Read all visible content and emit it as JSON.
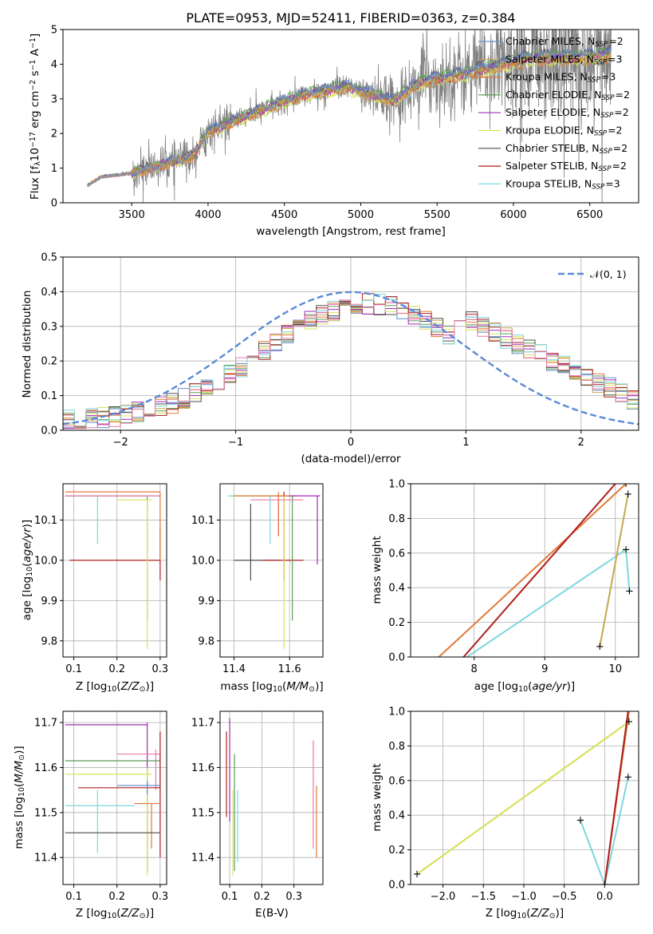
{
  "figure": {
    "title": "PLATE=0953, MJD=52411, FIBERID=0363, z=0.384"
  },
  "colors": {
    "data": "#808080",
    "Chabrier MILES": "#6a8fd0",
    "Salpeter MILES": "#c7a95a",
    "Kroupa MILES": "#e07b39",
    "Chabrier ELODIE": "#5e9c57",
    "Salpeter ELODIE": "#a02cb5",
    "Kroupa ELODIE": "#d9e35c",
    "Chabrier STELIB": "#4d4d4d",
    "Salpeter STELIB": "#b01e1e",
    "Kroupa STELIB": "#7fd6dd",
    "Kroupa ELODIE pink": "#e878a8",
    "normal": "#5b8ad6"
  },
  "chart_data": [
    {
      "id": "spectrum",
      "type": "line",
      "title": "PLATE=0953, MJD=52411, FIBERID=0363, z=0.384",
      "xlabel": "wavelength [Angstrom, rest frame]",
      "ylabel": "Flux [f",
      "ylabel_sub": "λ",
      "ylabel_rest": "10",
      "ylabel_exp": "−17",
      "ylabel_tail": " erg cm",
      "ylabel_exp2": "−2",
      "ylabel_tail2": " s",
      "ylabel_exp3": "−1",
      "ylabel_tail3": " A",
      "ylabel_exp4": "−1",
      "ylabel_end": "]",
      "xlim": [
        3050,
        6820
      ],
      "ylim": [
        0,
        5
      ],
      "xticks": [
        3500,
        4000,
        4500,
        5000,
        5500,
        6000,
        6500
      ],
      "yticks": [
        0,
        1,
        2,
        3,
        4,
        5
      ],
      "data_range": [
        3210,
        6640
      ],
      "continuum_anchors": [
        [
          3210,
          0.5
        ],
        [
          3300,
          0.75
        ],
        [
          3500,
          0.85
        ],
        [
          3700,
          1.1
        ],
        [
          3900,
          1.35
        ],
        [
          4000,
          2.05
        ],
        [
          4300,
          2.6
        ],
        [
          4600,
          3.1
        ],
        [
          4900,
          3.35
        ],
        [
          5100,
          3.1
        ],
        [
          5200,
          2.95
        ],
        [
          5400,
          3.5
        ],
        [
          5700,
          3.75
        ],
        [
          5900,
          3.95
        ],
        [
          6100,
          4.2
        ],
        [
          6400,
          4.2
        ],
        [
          6640,
          4.3
        ]
      ],
      "legend": [
        {
          "name": "Chabrier MILES",
          "sub": "SSP",
          "n": "2"
        },
        {
          "name": "Salpeter MILES",
          "sub": "SSP",
          "n": "3"
        },
        {
          "name": "Kroupa MILES",
          "sub": "SSP",
          "n": "3"
        },
        {
          "name": "Chabrier ELODIE",
          "sub": "SSP",
          "n": "2"
        },
        {
          "name": "Salpeter ELODIE",
          "sub": "SSP",
          "n": "2"
        },
        {
          "name": "Kroupa ELODIE",
          "sub": "SSP",
          "n": "2"
        },
        {
          "name": "Chabrier STELIB",
          "sub": "SSP",
          "n": "2"
        },
        {
          "name": "Salpeter STELIB",
          "sub": "SSP",
          "n": "2"
        },
        {
          "name": "Kroupa STELIB",
          "sub": "SSP",
          "n": "3"
        }
      ],
      "legend_prefix": "N",
      "legend_location": "top-right"
    },
    {
      "id": "residuals",
      "type": "histogram",
      "xlabel": "(data-model)/error",
      "ylabel": "Normed distribution",
      "xlim": [
        -2.5,
        2.5
      ],
      "ylim": [
        0,
        0.5
      ],
      "xticks": [
        -2,
        -1,
        0,
        1,
        2
      ],
      "yticks": [
        0.0,
        0.1,
        0.2,
        0.3,
        0.4,
        0.5
      ],
      "bin_width": 0.1,
      "grid": true,
      "legend": [
        {
          "name": "𝒩(0, 1)"
        }
      ],
      "legend_location": "top-right"
    },
    {
      "id": "age_vs_Z",
      "type": "errorbar",
      "xlabel": "Z [log",
      "xlabel_sub": "10",
      "xlabel_rest": "(Z/Z",
      "xlabel_sub2": "⊙",
      "xlabel_end": ")]",
      "ylabel": "age  [log",
      "ylabel_sub": "10",
      "ylabel_rest": "(age/yr)]",
      "xlim": [
        0.075,
        0.315
      ],
      "ylim": [
        9.76,
        10.19
      ],
      "xticks": [
        "0.1",
        "0.2",
        "0.3"
      ],
      "yticks": [
        "9.8",
        "9.9",
        "10.0",
        "10.1"
      ],
      "grid": true
    },
    {
      "id": "age_vs_mass",
      "type": "errorbar",
      "xlabel": "mass [log",
      "xlabel_sub": "10",
      "xlabel_rest": "(M/M",
      "xlabel_sub2": "⊙",
      "xlabel_end": ")]",
      "xlim": [
        11.35,
        11.72
      ],
      "ylim": [
        9.76,
        10.19
      ],
      "xticks": [
        "11.4",
        "11.6"
      ],
      "yticks": [
        "9.8",
        "9.9",
        "10.0",
        "10.1"
      ],
      "grid": true
    },
    {
      "id": "weight_vs_age",
      "type": "line",
      "xlabel": "age  [log",
      "xlabel_sub": "10",
      "xlabel_rest": "(age/yr)]",
      "ylabel": "mass weight",
      "xlim": [
        7.1,
        10.33
      ],
      "ylim": [
        0,
        1
      ],
      "xticks": [
        "8",
        "9",
        "10"
      ],
      "yticks": [
        "0.0",
        "0.2",
        "0.4",
        "0.6",
        "0.8",
        "1.0"
      ],
      "grid": true
    },
    {
      "id": "mass_vs_Z",
      "type": "errorbar",
      "xlabel": "Z [log",
      "xlabel_sub": "10",
      "xlabel_rest": "(Z/Z",
      "xlabel_sub2": "⊙",
      "xlabel_end": ")]",
      "ylabel": "mass [log",
      "ylabel_sub": "10",
      "ylabel_rest": "(M/M",
      "ylabel_sub2": "⊙",
      "ylabel_end": ")]",
      "xlim": [
        0.075,
        0.315
      ],
      "ylim": [
        11.34,
        11.725
      ],
      "xticks": [
        "0.1",
        "0.2",
        "0.3"
      ],
      "yticks": [
        "11.4",
        "11.5",
        "11.6",
        "11.7"
      ],
      "grid": true
    },
    {
      "id": "mass_vs_ebv",
      "type": "errorbar",
      "xlabel": "E(B-V)",
      "xlim": [
        0.07,
        0.39
      ],
      "ylim": [
        11.34,
        11.725
      ],
      "xticks": [
        "0.1",
        "0.2",
        "0.3"
      ],
      "yticks": [
        "11.4",
        "11.5",
        "11.6",
        "11.7"
      ],
      "grid": true
    },
    {
      "id": "weight_vs_Z",
      "type": "line",
      "xlabel": "Z [log",
      "xlabel_sub": "10",
      "xlabel_rest": "(Z/Z",
      "xlabel_sub2": "⊙",
      "xlabel_end": ")]",
      "ylabel": "mass weight",
      "xlim": [
        -2.4,
        0.42
      ],
      "ylim": [
        0,
        1
      ],
      "xticks": [
        "−2.0",
        "−1.5",
        "−1.0",
        "−0.5",
        "0.0"
      ],
      "xtick_values": [
        -2.0,
        -1.5,
        -1.0,
        -0.5,
        0.0
      ],
      "yticks": [
        "0.0",
        "0.2",
        "0.4",
        "0.6",
        "0.8",
        "1.0"
      ],
      "grid": true
    }
  ]
}
